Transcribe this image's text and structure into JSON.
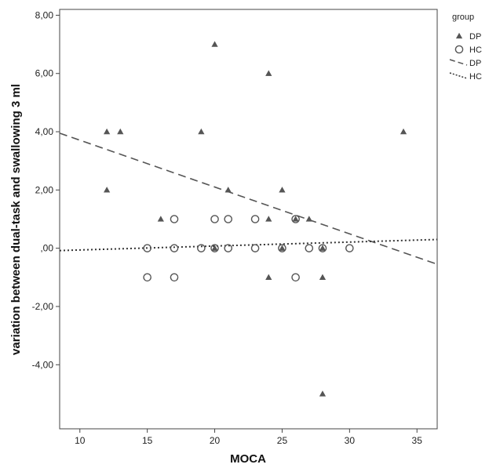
{
  "chart_data": {
    "type": "scatter",
    "title": "",
    "xlabel": "MOCA",
    "ylabel": "variation between dual-task and swallowing 3 ml",
    "xlim": [
      8.5,
      36.5
    ],
    "ylim": [
      -6.2,
      8.2
    ],
    "xticks": [
      10,
      15,
      20,
      25,
      30,
      35
    ],
    "xtick_labels": [
      "10",
      "15",
      "20",
      "25",
      "30",
      "35"
    ],
    "yticks": [
      -4,
      -2,
      0,
      2,
      4,
      6,
      8
    ],
    "ytick_labels": [
      "-4,00",
      "-2,00",
      ",00",
      "2,00",
      "4,00",
      "6,00",
      "8,00"
    ],
    "grid": false,
    "legend_position": "outside top-right",
    "legend_title": "group",
    "series": [
      {
        "name": "DP",
        "marker": "triangle",
        "color": "#555555",
        "points": [
          [
            12,
            4
          ],
          [
            13,
            4
          ],
          [
            12,
            2
          ],
          [
            19,
            4
          ],
          [
            20,
            7
          ],
          [
            24,
            6
          ],
          [
            21,
            2
          ],
          [
            25,
            2
          ],
          [
            16,
            1
          ],
          [
            24,
            1
          ],
          [
            26,
            1
          ],
          [
            27,
            1
          ],
          [
            20,
            0
          ],
          [
            25,
            0
          ],
          [
            28,
            0
          ],
          [
            24,
            -1
          ],
          [
            28,
            -1
          ],
          [
            28,
            -5
          ],
          [
            34,
            4
          ]
        ]
      },
      {
        "name": "HC",
        "marker": "circle",
        "color": "#555555",
        "points": [
          [
            17,
            1
          ],
          [
            20,
            1
          ],
          [
            21,
            1
          ],
          [
            23,
            1
          ],
          [
            26,
            1
          ],
          [
            15,
            0
          ],
          [
            17,
            0
          ],
          [
            19,
            0
          ],
          [
            20,
            0
          ],
          [
            21,
            0
          ],
          [
            23,
            0
          ],
          [
            25,
            0
          ],
          [
            27,
            0
          ],
          [
            28,
            0
          ],
          [
            30,
            0
          ],
          [
            15,
            -1
          ],
          [
            17,
            -1
          ],
          [
            26,
            -1
          ]
        ]
      }
    ],
    "fit_lines": [
      {
        "name": "DP",
        "style": "dashed",
        "color": "#555555",
        "x": [
          8.5,
          36.5
        ],
        "y": [
          3.95,
          -0.55
        ]
      },
      {
        "name": "HC",
        "style": "dotted",
        "color": "#333333",
        "x": [
          8.5,
          36.5
        ],
        "y": [
          -0.08,
          0.3
        ]
      }
    ]
  }
}
